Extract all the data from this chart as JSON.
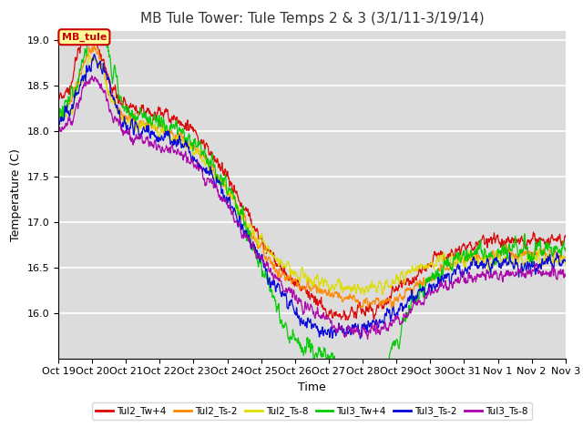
{
  "title": "MB Tule Tower: Tule Temps 2 & 3 (3/1/11-3/19/14)",
  "xlabel": "Time",
  "ylabel": "Temperature (C)",
  "ylim": [
    15.5,
    19.1
  ],
  "xlim": [
    0,
    15
  ],
  "xtick_labels": [
    "Oct 19",
    "Oct 20",
    "Oct 21",
    "Oct 22",
    "Oct 23",
    "Oct 24",
    "Oct 25",
    "Oct 26",
    "Oct 27",
    "Oct 28",
    "Oct 29",
    "Oct 30",
    "Oct 31",
    "Nov 1",
    "Nov 2",
    "Nov 3"
  ],
  "ytick_values": [
    16.0,
    16.5,
    17.0,
    17.5,
    18.0,
    18.5,
    19.0
  ],
  "annotation_text": "MB_tule",
  "series": [
    {
      "label": "Tul2_Tw+4",
      "color": "#dd0000"
    },
    {
      "label": "Tul2_Ts-2",
      "color": "#ff8800"
    },
    {
      "label": "Tul2_Ts-8",
      "color": "#dddd00"
    },
    {
      "label": "Tul3_Tw+4",
      "color": "#00cc00"
    },
    {
      "label": "Tul3_Ts-2",
      "color": "#0000dd"
    },
    {
      "label": "Tul3_Ts-8",
      "color": "#aa00aa"
    }
  ],
  "plot_bg": "#dcdcdc",
  "title_fontsize": 11,
  "axis_fontsize": 9,
  "tick_fontsize": 8
}
